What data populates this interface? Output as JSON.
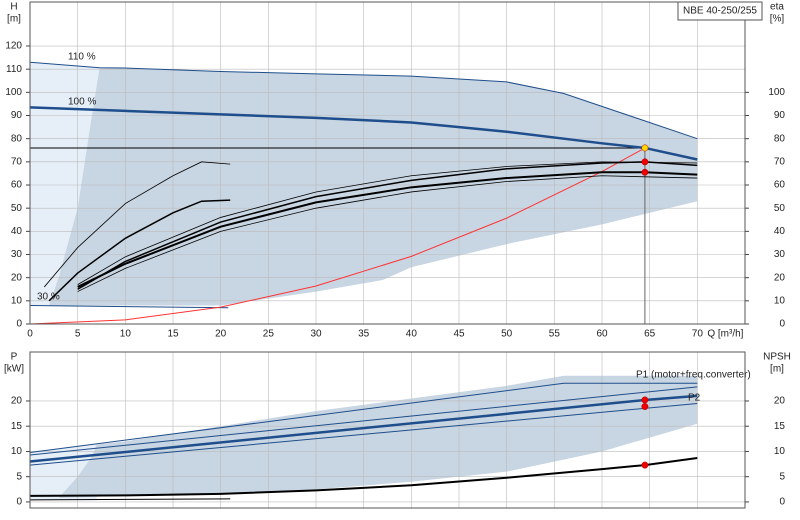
{
  "chart_data": [
    {
      "type": "line",
      "title": "NBE 40-250/255",
      "y_label": "H",
      "y_unit": "[m]",
      "y2_label": "eta",
      "y2_unit": "[%]",
      "x_label": "Q [m³/h]",
      "xlim": [
        0,
        75
      ],
      "xticks": [
        0,
        5,
        10,
        15,
        20,
        25,
        30,
        35,
        40,
        45,
        50,
        55,
        60,
        65,
        70
      ],
      "ylim": [
        0,
        139
      ],
      "yticks": [
        0,
        10,
        20,
        30,
        40,
        50,
        60,
        70,
        80,
        90,
        100,
        110,
        120
      ],
      "y2lim": [
        0,
        139
      ],
      "y2ticks": [
        0,
        10,
        20,
        30,
        40,
        50,
        60,
        70,
        80,
        90,
        100
      ],
      "grid": true,
      "areas": [
        {
          "color": "#e6eff8",
          "x": [
            0,
            7.3,
            7.3,
            0
          ],
          "values": [
            113,
            110.6,
            8,
            8
          ]
        },
        {
          "color": "#c8d5e2",
          "x": [
            7.3,
            10,
            20,
            30,
            40,
            50,
            56,
            70,
            70,
            60,
            50,
            40,
            37,
            30,
            20,
            2,
            3,
            5,
            6.5
          ],
          "values": [
            110.6,
            110.5,
            109,
            108,
            107,
            104.5,
            99.5,
            80,
            53,
            43,
            34.5,
            24.5,
            19,
            14,
            8,
            8,
            20,
            50,
            90
          ]
        }
      ],
      "series": [
        {
          "color": "#1f4e8c",
          "width": 1,
          "x": [
            0,
            7.3,
            10,
            20,
            30,
            40,
            50,
            56,
            70
          ],
          "values": [
            113,
            110.6,
            110.5,
            109,
            108,
            107,
            104.5,
            99.5,
            80
          ]
        },
        {
          "color": "#1f4e8c",
          "width": 2.5,
          "x": [
            0,
            10,
            20,
            30,
            40,
            50,
            60,
            64.5,
            70
          ],
          "values": [
            93.5,
            92,
            90.5,
            89,
            87,
            83,
            78,
            76,
            71
          ]
        },
        {
          "color": "#1f4e8c",
          "width": 1,
          "x": [
            0,
            20.8
          ],
          "values": [
            8,
            7
          ]
        },
        {
          "color": "#ff3333",
          "width": 1,
          "x": [
            0,
            10,
            20,
            30,
            40,
            50,
            60,
            64.5
          ],
          "values": [
            0,
            1.8,
            7.3,
            16.4,
            29.2,
            45.7,
            65.8,
            76
          ]
        },
        {
          "color": "#000000",
          "width": 0.8,
          "axis": "y2",
          "x": [
            1.5,
            5,
            10,
            15,
            18,
            21
          ],
          "values": [
            16,
            33,
            52,
            64,
            70,
            69
          ]
        },
        {
          "color": "#000000",
          "width": 1.5,
          "axis": "y2",
          "x": [
            2,
            5,
            10,
            15,
            18,
            21
          ],
          "values": [
            10,
            22,
            37,
            48,
            53,
            53.5
          ]
        },
        {
          "color": "#000000",
          "width": 0.8,
          "axis": "y2",
          "x": [
            5,
            10,
            20,
            30,
            40,
            50,
            60,
            70
          ],
          "values": [
            17,
            29,
            46,
            57,
            64,
            68,
            70,
            69.5
          ]
        },
        {
          "color": "#000000",
          "width": 1.5,
          "axis": "y2",
          "x": [
            5,
            10,
            20,
            30,
            40,
            50,
            60,
            64.5,
            70
          ],
          "values": [
            15,
            27,
            44,
            55,
            62,
            67,
            69.5,
            70,
            68.5
          ]
        },
        {
          "color": "#000000",
          "width": 2,
          "axis": "y2",
          "x": [
            5,
            10,
            20,
            30,
            40,
            50,
            60,
            64.5,
            70
          ],
          "values": [
            16,
            26,
            42,
            52.5,
            59,
            63,
            65.5,
            65.5,
            64.5
          ]
        },
        {
          "color": "#000000",
          "width": 0.8,
          "axis": "y2",
          "x": [
            5,
            10,
            20,
            30,
            40,
            50,
            60,
            70
          ],
          "values": [
            14,
            24,
            40,
            50,
            57,
            61.5,
            64,
            63
          ]
        }
      ],
      "points": [
        {
          "x": 64.5,
          "value": 76,
          "color": "#ffd700"
        },
        {
          "x": 64.5,
          "value": 70,
          "color": "#ee0000",
          "axis": "y2"
        },
        {
          "x": 64.5,
          "value": 65.5,
          "color": "#ee0000",
          "axis": "y2"
        }
      ],
      "duty": {
        "x": 64.5,
        "value": 76
      },
      "annotations": [
        "110 %",
        "100 %",
        "30 %"
      ]
    },
    {
      "type": "line",
      "y_label": "P",
      "y_unit": "[kW]",
      "y2_label": "NPSH",
      "y2_unit": "[m]",
      "xlim": [
        0,
        75
      ],
      "xticks": [
        0,
        5,
        10,
        15,
        20,
        25,
        30,
        35,
        40,
        45,
        50,
        55,
        60,
        65,
        70
      ],
      "ylim": [
        -1.2,
        29.7
      ],
      "yticks": [
        0,
        5,
        10,
        15,
        20
      ],
      "y2lim": [
        -1.2,
        29.7
      ],
      "y2ticks": [
        0,
        5,
        10,
        15,
        20
      ],
      "grid": true,
      "areas": [
        {
          "color": "#e6eff8",
          "x": [
            0,
            7,
            7,
            0
          ],
          "values": [
            10,
            11.4,
            0.3,
            0.3
          ]
        },
        {
          "color": "#c8d5e2",
          "x": [
            7,
            10,
            20,
            30,
            40,
            50,
            56,
            70,
            70,
            60,
            50,
            40,
            30,
            20,
            10,
            3,
            5,
            6.5
          ],
          "values": [
            11.4,
            12,
            15,
            18,
            20.5,
            23,
            25,
            25,
            15.5,
            10,
            6,
            4,
            2.5,
            1.5,
            1.2,
            0.8,
            5,
            9
          ]
        }
      ],
      "series": [
        {
          "color": "#1f4e8c",
          "width": 1,
          "x": [
            0,
            56,
            70
          ],
          "values": [
            9.8,
            23.5,
            23.5
          ]
        },
        {
          "color": "#1f4e8c",
          "width": 1,
          "x": [
            0,
            70
          ],
          "values": [
            9.3,
            22.8
          ]
        },
        {
          "color": "#1f4e8c",
          "width": 2.5,
          "x": [
            0,
            64.5,
            70
          ],
          "values": [
            8,
            20.2,
            21
          ]
        },
        {
          "color": "#1f4e8c",
          "width": 1,
          "x": [
            0,
            70
          ],
          "values": [
            7.3,
            19.5
          ]
        },
        {
          "color": "#000000",
          "width": 2,
          "axis": "y2",
          "x": [
            0,
            10,
            20,
            30,
            40,
            50,
            60,
            64.5,
            70
          ],
          "values": [
            1.2,
            1.3,
            1.6,
            2.3,
            3.3,
            4.8,
            6.5,
            7.3,
            8.7
          ]
        },
        {
          "color": "#000000",
          "width": 1,
          "axis": "y2",
          "x": [
            0,
            21
          ],
          "values": [
            0.4,
            0.6
          ]
        }
      ],
      "points": [
        {
          "x": 64.5,
          "value": 20.2,
          "color": "#ee0000"
        },
        {
          "x": 64.5,
          "value": 18.9,
          "color": "#ee0000"
        },
        {
          "x": 64.5,
          "value": 7.3,
          "color": "#ee0000",
          "axis": "y2"
        }
      ],
      "annotations": [
        "P1 (motor+freq.converter)",
        "P2"
      ]
    }
  ]
}
